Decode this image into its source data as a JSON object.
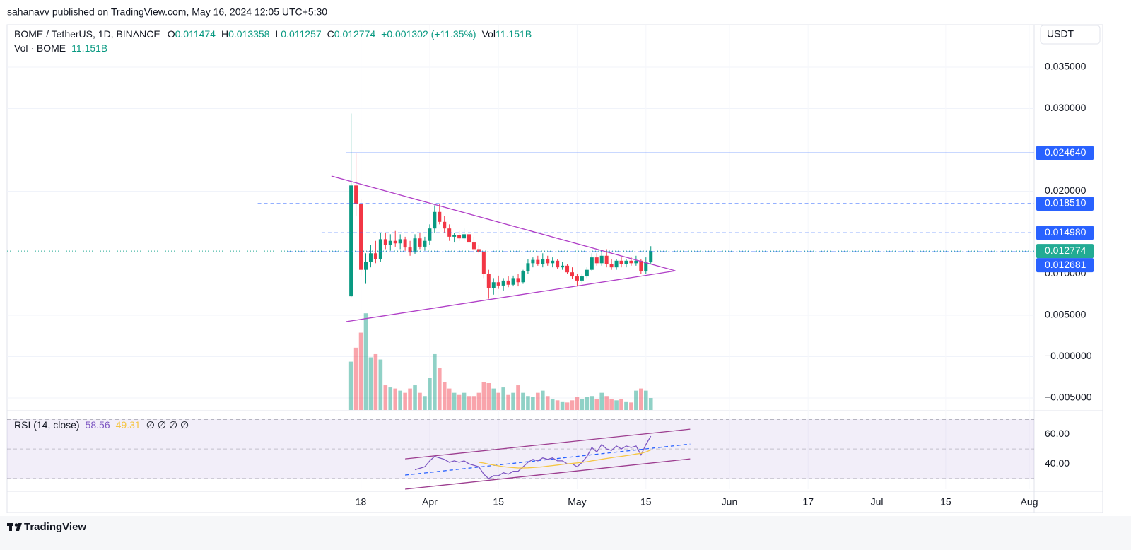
{
  "header": {
    "byline": "sahanavv published on TradingView.com, May 16, 2024 12:05 UTC+5:30",
    "brand": "TradingView"
  },
  "chart_data": [
    {
      "type": "candlestick",
      "legend": {
        "symbol": "BOME / TetherUS, 1D, BINANCE",
        "o_label": "O",
        "o": 0.011474,
        "h_label": "H",
        "h": 0.013358,
        "l_label": "L",
        "l": 0.011257,
        "c_label": "C",
        "c": 0.012774,
        "change": "+0.001302 (+11.35%)",
        "vol_label": "Vol",
        "vol": "11.151B",
        "vol_line_label": "Vol · BOME",
        "vol_line_value": "11.151B"
      },
      "currency": "USDT",
      "x": [
        "Mar 16",
        "Mar 17",
        "Mar 18",
        "Mar 19",
        "Mar 20",
        "Mar 21",
        "Mar 22",
        "Mar 23",
        "Mar 24",
        "Mar 25",
        "Mar 26",
        "Mar 27",
        "Mar 28",
        "Mar 29",
        "Mar 30",
        "Mar 31",
        "Apr 1",
        "Apr 2",
        "Apr 3",
        "Apr 4",
        "Apr 5",
        "Apr 6",
        "Apr 7",
        "Apr 8",
        "Apr 9",
        "Apr 10",
        "Apr 11",
        "Apr 12",
        "Apr 13",
        "Apr 14",
        "Apr 15",
        "Apr 16",
        "Apr 17",
        "Apr 18",
        "Apr 19",
        "Apr 20",
        "Apr 21",
        "Apr 22",
        "Apr 23",
        "Apr 24",
        "Apr 25",
        "Apr 26",
        "Apr 27",
        "Apr 28",
        "Apr 29",
        "Apr 30",
        "May 1",
        "May 2",
        "May 3",
        "May 4",
        "May 5",
        "May 6",
        "May 7",
        "May 8",
        "May 9",
        "May 10",
        "May 11",
        "May 12",
        "May 13",
        "May 14",
        "May 15",
        "May 16"
      ],
      "open": [
        0.0073,
        0.0207,
        0.0185,
        0.0105,
        0.0115,
        0.0125,
        0.0118,
        0.0142,
        0.0135,
        0.014,
        0.0137,
        0.0142,
        0.0132,
        0.0126,
        0.0143,
        0.0133,
        0.014,
        0.0155,
        0.0175,
        0.0163,
        0.0155,
        0.0145,
        0.0147,
        0.0143,
        0.0148,
        0.0138,
        0.013,
        0.0127,
        0.01,
        0.0083,
        0.009,
        0.0086,
        0.0092,
        0.0087,
        0.0095,
        0.009,
        0.0103,
        0.0113,
        0.0117,
        0.0112,
        0.0118,
        0.0113,
        0.0116,
        0.0108,
        0.011,
        0.0102,
        0.0097,
        0.0092,
        0.0097,
        0.0105,
        0.012,
        0.0113,
        0.0122,
        0.0112,
        0.0108,
        0.0116,
        0.0112,
        0.0116,
        0.0113,
        0.0116,
        0.0103,
        0.011474
      ],
      "high": [
        0.0294,
        0.0246,
        0.019,
        0.0125,
        0.0135,
        0.014,
        0.015,
        0.015,
        0.0148,
        0.0152,
        0.0148,
        0.0145,
        0.014,
        0.0148,
        0.015,
        0.0145,
        0.016,
        0.0183,
        0.0185,
        0.017,
        0.016,
        0.015,
        0.0152,
        0.0155,
        0.015,
        0.0145,
        0.0135,
        0.0128,
        0.0105,
        0.0095,
        0.0098,
        0.0095,
        0.0097,
        0.0098,
        0.01,
        0.0105,
        0.0118,
        0.012,
        0.0122,
        0.0125,
        0.0122,
        0.012,
        0.0118,
        0.0115,
        0.0112,
        0.0108,
        0.01,
        0.01,
        0.0108,
        0.0125,
        0.0125,
        0.0128,
        0.013,
        0.0118,
        0.0118,
        0.012,
        0.0118,
        0.012,
        0.0122,
        0.0118,
        0.012,
        0.013358
      ],
      "low": [
        0.0072,
        0.017,
        0.0098,
        0.0088,
        0.0108,
        0.0113,
        0.0115,
        0.013,
        0.0128,
        0.0133,
        0.013,
        0.0128,
        0.0122,
        0.0124,
        0.013,
        0.0128,
        0.0135,
        0.015,
        0.016,
        0.015,
        0.014,
        0.0138,
        0.014,
        0.014,
        0.0135,
        0.0125,
        0.0125,
        0.0095,
        0.007,
        0.0075,
        0.0082,
        0.008,
        0.0084,
        0.0085,
        0.0085,
        0.0088,
        0.01,
        0.0108,
        0.011,
        0.0108,
        0.011,
        0.0108,
        0.0106,
        0.0105,
        0.01,
        0.0094,
        0.0085,
        0.0088,
        0.0095,
        0.0103,
        0.011,
        0.011,
        0.0108,
        0.0105,
        0.0105,
        0.0108,
        0.0108,
        0.011,
        0.011,
        0.01,
        0.01,
        0.011257
      ],
      "close": [
        0.0207,
        0.0185,
        0.0105,
        0.0115,
        0.0125,
        0.0118,
        0.0142,
        0.0135,
        0.014,
        0.0137,
        0.0142,
        0.0132,
        0.0126,
        0.0143,
        0.0133,
        0.014,
        0.0155,
        0.0175,
        0.0163,
        0.0155,
        0.0145,
        0.0147,
        0.0143,
        0.0148,
        0.0138,
        0.013,
        0.0127,
        0.01,
        0.0083,
        0.009,
        0.0086,
        0.0092,
        0.0087,
        0.0095,
        0.009,
        0.0103,
        0.0113,
        0.0117,
        0.0112,
        0.0118,
        0.0113,
        0.0116,
        0.0108,
        0.011,
        0.0102,
        0.0097,
        0.0092,
        0.0097,
        0.0105,
        0.012,
        0.0113,
        0.0122,
        0.0112,
        0.0108,
        0.0116,
        0.0112,
        0.0116,
        0.0113,
        0.0116,
        0.0103,
        0.0115,
        0.012774
      ],
      "volume": [
        45,
        58,
        72,
        90,
        49,
        52,
        47,
        23,
        21,
        20,
        18,
        16,
        20,
        23,
        16,
        13,
        30,
        52,
        39,
        26,
        20,
        16,
        14,
        16,
        13,
        13,
        16,
        26,
        25,
        20,
        16,
        21,
        14,
        16,
        23,
        16,
        13,
        12,
        16,
        18,
        13,
        10,
        9,
        8,
        7,
        9,
        12,
        10,
        12,
        13,
        10,
        16,
        13,
        10,
        9,
        10,
        8,
        7,
        18,
        20,
        18,
        11.151
      ],
      "volume_ylim": [
        0,
        100
      ],
      "up_color": "#089981",
      "down_color": "#f23645",
      "xlim": [
        "Jan 6",
        "Aug 2"
      ],
      "xticks": [
        {
          "value": "Mar 18",
          "label": "18"
        },
        {
          "value": "Apr 1",
          "label": "Apr"
        },
        {
          "value": "Apr 15",
          "label": "15"
        },
        {
          "value": "May 1",
          "label": "May"
        },
        {
          "value": "May 15",
          "label": "15"
        },
        {
          "value": "Jun 1",
          "label": "Jun"
        },
        {
          "value": "Jun 17",
          "label": "17"
        },
        {
          "value": "Jul 1",
          "label": "Jul"
        },
        {
          "value": "Jul 15",
          "label": "15"
        },
        {
          "value": "Aug 1",
          "label": "Aug"
        }
      ],
      "ylim": [
        -0.00645,
        0.04013
      ],
      "yticks": [
        {
          "value": 0.035,
          "label": "0.035000"
        },
        {
          "value": 0.03,
          "label": "0.030000"
        },
        {
          "value": 0.02,
          "label": "0.020000"
        },
        {
          "value": 0.01,
          "label": "0.010000"
        },
        {
          "value": 0.005,
          "label": "0.005000"
        },
        {
          "value": 0,
          "label": "−0.000000"
        },
        {
          "value": -0.005,
          "label": "−0.005000"
        }
      ],
      "grid": true,
      "levels": [
        {
          "value": 0.02464,
          "label": "0.024640",
          "from": "Mar 15",
          "style": "solid",
          "color": "#2962ff"
        },
        {
          "value": 0.01851,
          "label": "0.018510",
          "from": "Feb 26",
          "style": "dashed",
          "color": "#2962ff"
        },
        {
          "value": 0.01498,
          "label": "0.014980",
          "from": "Mar 10",
          "style": "dashed",
          "color": "#2962ff"
        },
        {
          "value": 0.012774,
          "label": "0.012774",
          "from": "Jan 6",
          "style": "dotted",
          "color": "#22ab94"
        },
        {
          "value": 0.012681,
          "label": "0.012681",
          "from": "Mar 3",
          "style": "dashdot",
          "color": "#2962ff"
        }
      ],
      "trendlines": [
        {
          "from": [
            "Mar 12",
            0.02184
          ],
          "to": [
            "May 21",
            0.01038
          ],
          "color": "#b03fc7"
        },
        {
          "from": [
            "Mar 15",
            0.00423
          ],
          "to": [
            "May 21",
            0.01038
          ],
          "color": "#b03fc7"
        }
      ]
    },
    {
      "type": "line",
      "legend": {
        "name": "RSI (14, close)",
        "rsi": 58.56,
        "ma": 49.31,
        "extra": "∅ ∅ ∅ ∅"
      },
      "x": [
        "Mar 29",
        "Mar 30",
        "Mar 31",
        "Apr 1",
        "Apr 2",
        "Apr 3",
        "Apr 4",
        "Apr 5",
        "Apr 6",
        "Apr 7",
        "Apr 8",
        "Apr 9",
        "Apr 10",
        "Apr 11",
        "Apr 12",
        "Apr 13",
        "Apr 14",
        "Apr 15",
        "Apr 16",
        "Apr 17",
        "Apr 18",
        "Apr 19",
        "Apr 20",
        "Apr 21",
        "Apr 22",
        "Apr 23",
        "Apr 24",
        "Apr 25",
        "Apr 26",
        "Apr 27",
        "Apr 28",
        "Apr 29",
        "Apr 30",
        "May 1",
        "May 2",
        "May 3",
        "May 4",
        "May 5",
        "May 6",
        "May 7",
        "May 8",
        "May 9",
        "May 10",
        "May 11",
        "May 12",
        "May 13",
        "May 14",
        "May 15",
        "May 16"
      ],
      "series": [
        {
          "name": "RSI",
          "color": "#7e57c2",
          "values": [
            36,
            37,
            38,
            42,
            45,
            44,
            43,
            41,
            42,
            41,
            42,
            40,
            39,
            38,
            33,
            30,
            32,
            32,
            34,
            33,
            35,
            35,
            38,
            41,
            43,
            42,
            44,
            43,
            44,
            42,
            42,
            40,
            40,
            38,
            41,
            45,
            51,
            48,
            53,
            50,
            49,
            52,
            50,
            52,
            51,
            52,
            46,
            53,
            58.56
          ]
        },
        {
          "name": "RSI-based MA",
          "color": "#f5c542",
          "values": [
            null,
            null,
            null,
            null,
            null,
            null,
            null,
            null,
            null,
            null,
            null,
            null,
            null,
            41,
            40.5,
            39.8,
            39.2,
            38.6,
            38.1,
            37.7,
            37.4,
            37.2,
            37.2,
            37.3,
            37.5,
            37.7,
            38,
            38.4,
            38.8,
            39.2,
            39.6,
            40,
            40.3,
            40.6,
            41,
            41.4,
            42,
            42.5,
            43.1,
            43.6,
            44.1,
            44.6,
            45,
            45.5,
            46,
            46.6,
            47,
            48,
            49.31
          ]
        }
      ],
      "ylim": [
        22.9,
        74.8
      ],
      "yticks": [
        {
          "value": 60,
          "label": "60.00"
        },
        {
          "value": 40,
          "label": "40.00"
        }
      ],
      "band": [
        30,
        70
      ],
      "midline": 50,
      "trendlines": [
        {
          "from": [
            "Mar 27",
            43.3
          ],
          "to": [
            "May 24",
            63.3
          ],
          "color": "#9c3d8f",
          "style": "solid"
        },
        {
          "from": [
            "Mar 27",
            22.9
          ],
          "to": [
            "May 24",
            43.3
          ],
          "color": "#9c3d8f",
          "style": "solid"
        },
        {
          "from": [
            "Mar 27",
            32.4
          ],
          "to": [
            "May 24",
            53.3
          ],
          "color": "#2962ff",
          "style": "dashed"
        }
      ]
    }
  ]
}
